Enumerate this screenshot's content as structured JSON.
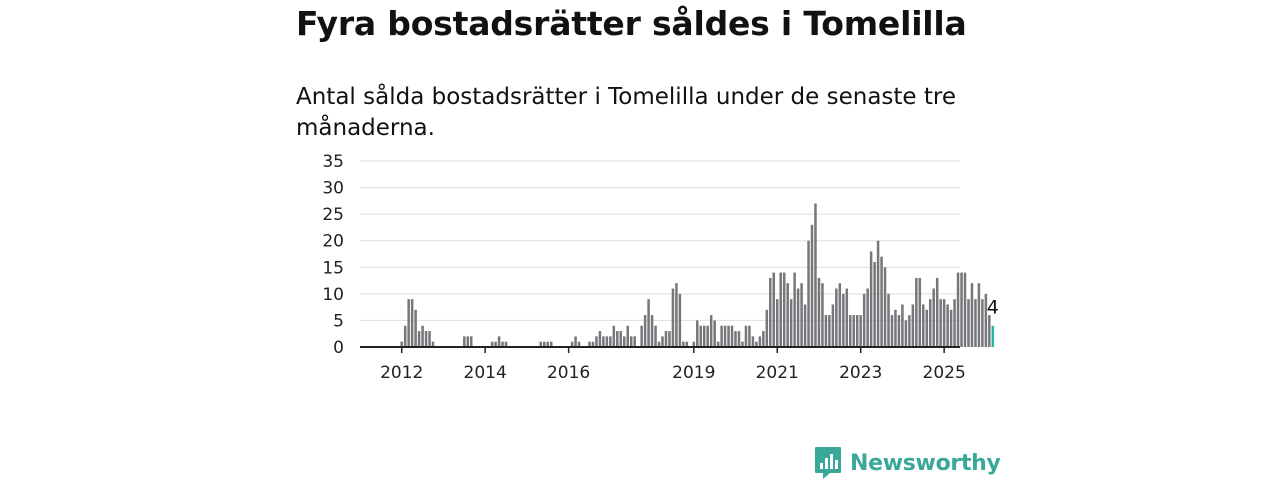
{
  "title": "Fyra bostadsrätter såldes i Tomelilla",
  "subtitle": "Antal sålda bostadsrätter i Tomelilla under de senaste tre månaderna.",
  "brand": {
    "name": "Newsworthy",
    "icon": "newsworthy-logo-icon",
    "color": "#3aa899"
  },
  "colors": {
    "bar": "#76767b",
    "highlight": "#27b6ae",
    "grid": "#dedede",
    "axis": "#222222"
  },
  "chart_data": {
    "type": "bar",
    "ylim": [
      0,
      35
    ],
    "yticks": [
      0,
      5,
      10,
      15,
      20,
      25,
      30,
      35
    ],
    "xlim": [
      2011.0,
      2025.38
    ],
    "xtick_labels": [
      {
        "label": "2012",
        "x": 2012.0
      },
      {
        "label": "2014",
        "x": 2014.0
      },
      {
        "label": "2016",
        "x": 2016.0
      },
      {
        "label": "2019",
        "x": 2019.0
      },
      {
        "label": "2021",
        "x": 2021.0
      },
      {
        "label": "2023",
        "x": 2023.0
      },
      {
        "label": "2025",
        "x": 2025.0
      }
    ],
    "grid": true,
    "legend": "none",
    "start": "2011-01",
    "values": [
      0,
      0,
      0,
      0,
      0,
      0,
      0,
      0,
      0,
      0,
      0,
      0,
      1,
      4,
      9,
      9,
      7,
      3,
      4,
      3,
      3,
      1,
      0,
      0,
      0,
      0,
      0,
      0,
      0,
      0,
      2,
      2,
      2,
      0,
      0,
      0,
      0,
      0,
      1,
      1,
      2,
      1,
      1,
      0,
      0,
      0,
      0,
      0,
      0,
      0,
      0,
      0,
      1,
      1,
      1,
      1,
      0,
      0,
      0,
      0,
      0,
      1,
      2,
      1,
      0,
      0,
      1,
      1,
      2,
      3,
      2,
      2,
      2,
      4,
      3,
      3,
      2,
      4,
      2,
      2,
      0,
      4,
      6,
      9,
      6,
      4,
      1,
      2,
      3,
      3,
      11,
      12,
      10,
      1,
      1,
      0,
      1,
      5,
      4,
      4,
      4,
      6,
      5,
      1,
      4,
      4,
      4,
      4,
      3,
      3,
      1,
      4,
      4,
      2,
      1,
      2,
      3,
      7,
      13,
      14,
      9,
      14,
      14,
      12,
      9,
      14,
      11,
      12,
      8,
      20,
      23,
      27,
      13,
      12,
      6,
      6,
      8,
      11,
      12,
      10,
      11,
      6,
      6,
      6,
      6,
      10,
      11,
      18,
      16,
      20,
      17,
      15,
      10,
      6,
      7,
      6,
      8,
      5,
      6,
      8,
      13,
      13,
      8,
      7,
      9,
      11,
      13,
      9,
      9,
      8,
      7,
      9,
      14,
      14,
      14,
      9,
      12,
      9,
      12,
      9,
      10,
      6,
      4
    ],
    "highlight_label": "4"
  }
}
